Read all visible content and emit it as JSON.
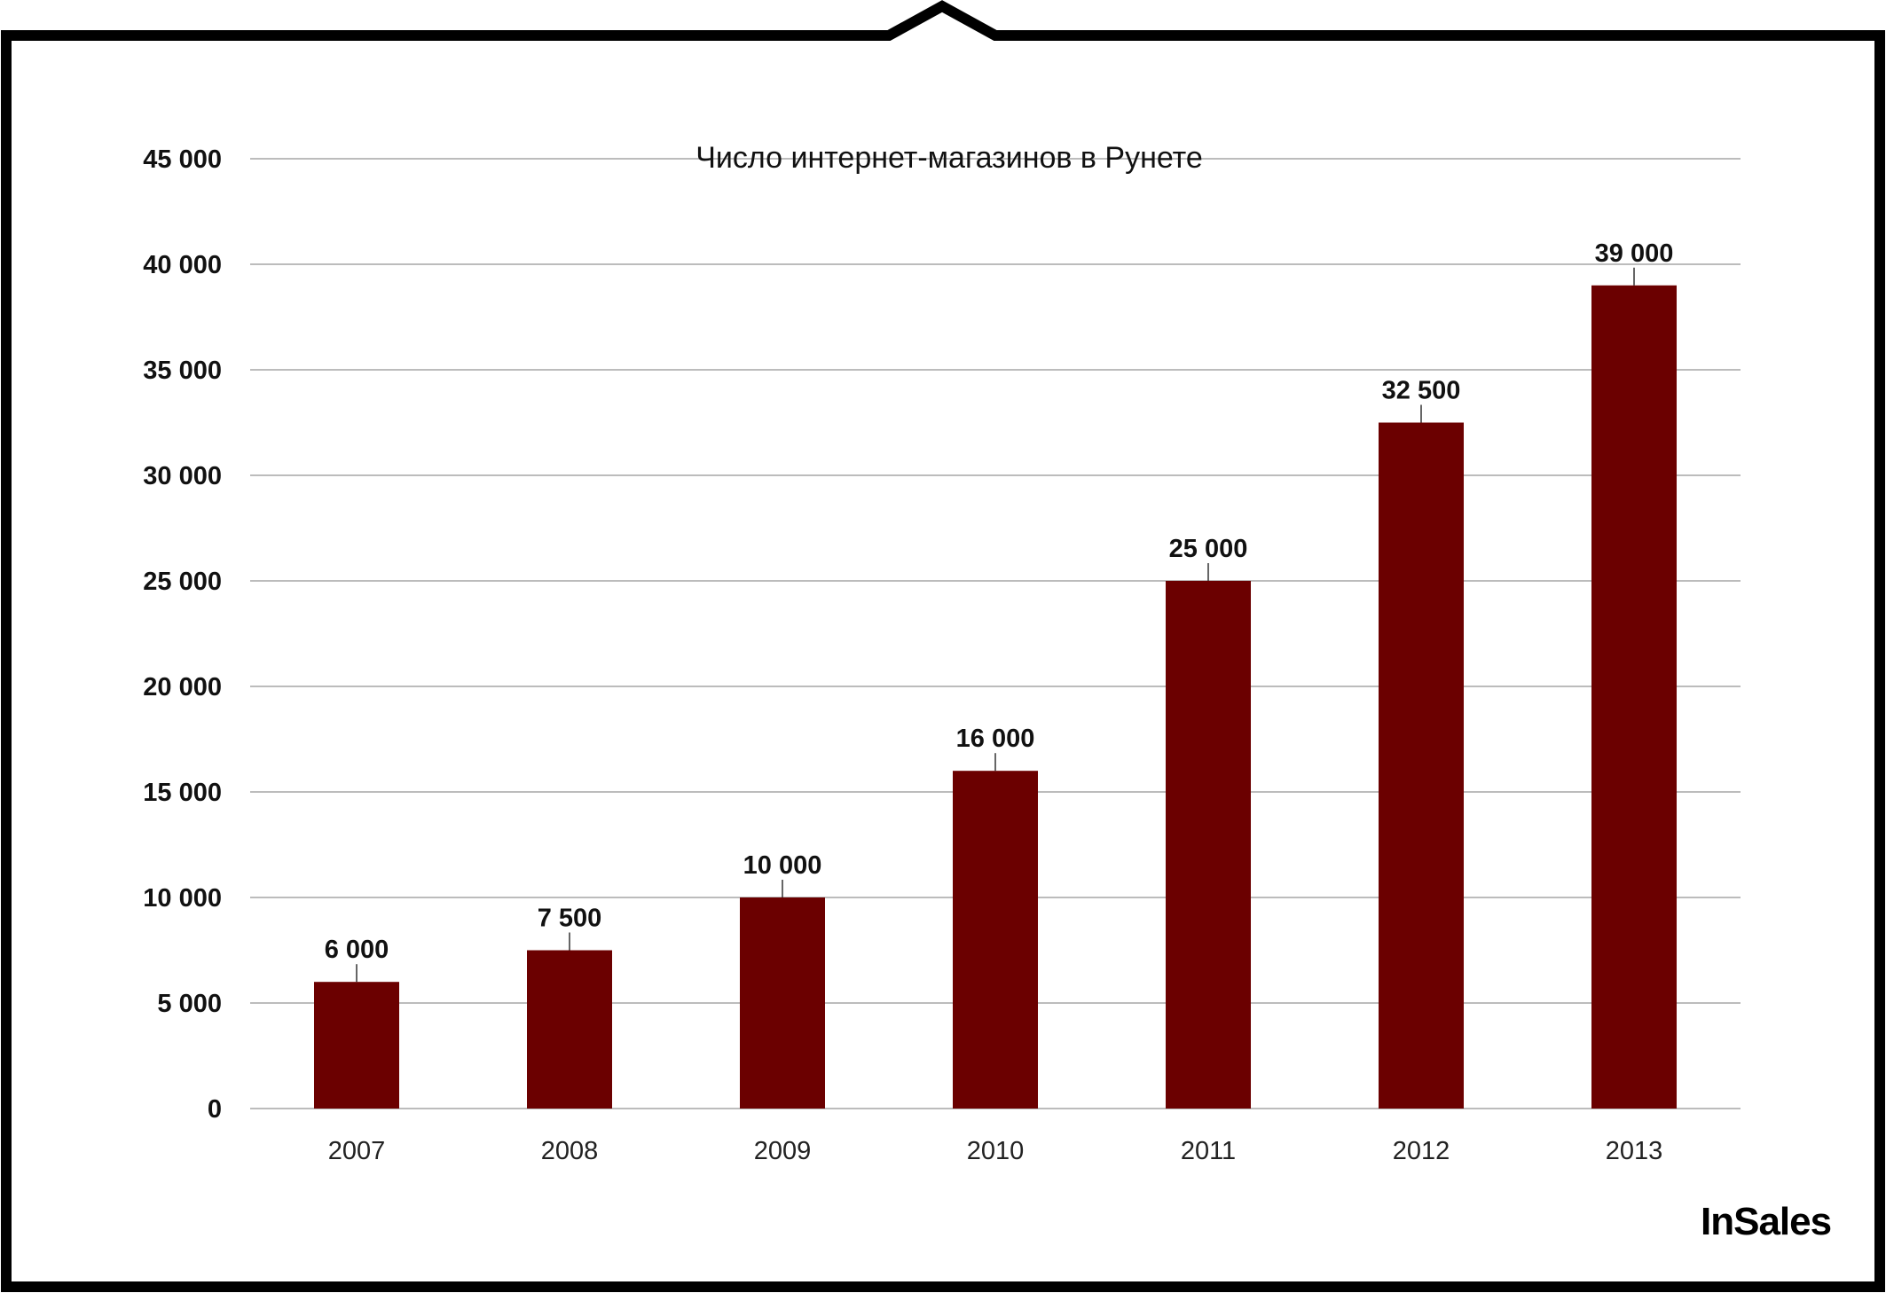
{
  "brand": {
    "logo_text": "InSales"
  },
  "colors": {
    "bar": "#6b0000",
    "grid": "#a6a6a6",
    "frame": "#000000",
    "text": "#111111"
  },
  "chart_data": {
    "type": "bar",
    "title": "Число интернет-магазинов в Рунете",
    "xlabel": "",
    "ylabel": "",
    "categories": [
      "2007",
      "2008",
      "2009",
      "2010",
      "2011",
      "2012",
      "2013"
    ],
    "values": [
      6000,
      7500,
      10000,
      16000,
      25000,
      32500,
      39000
    ],
    "value_labels": [
      "6 000",
      "7 500",
      "10 000",
      "16 000",
      "25 000",
      "32 500",
      "39 000"
    ],
    "ylim": [
      0,
      45000
    ],
    "yticks": [
      0,
      5000,
      10000,
      15000,
      20000,
      25000,
      30000,
      35000,
      40000,
      45000
    ],
    "ytick_labels": [
      "0",
      "5 000",
      "10 000",
      "15 000",
      "20 000",
      "25 000",
      "30 000",
      "35 000",
      "40 000",
      "45 000"
    ],
    "grid": true,
    "legend": "none"
  }
}
